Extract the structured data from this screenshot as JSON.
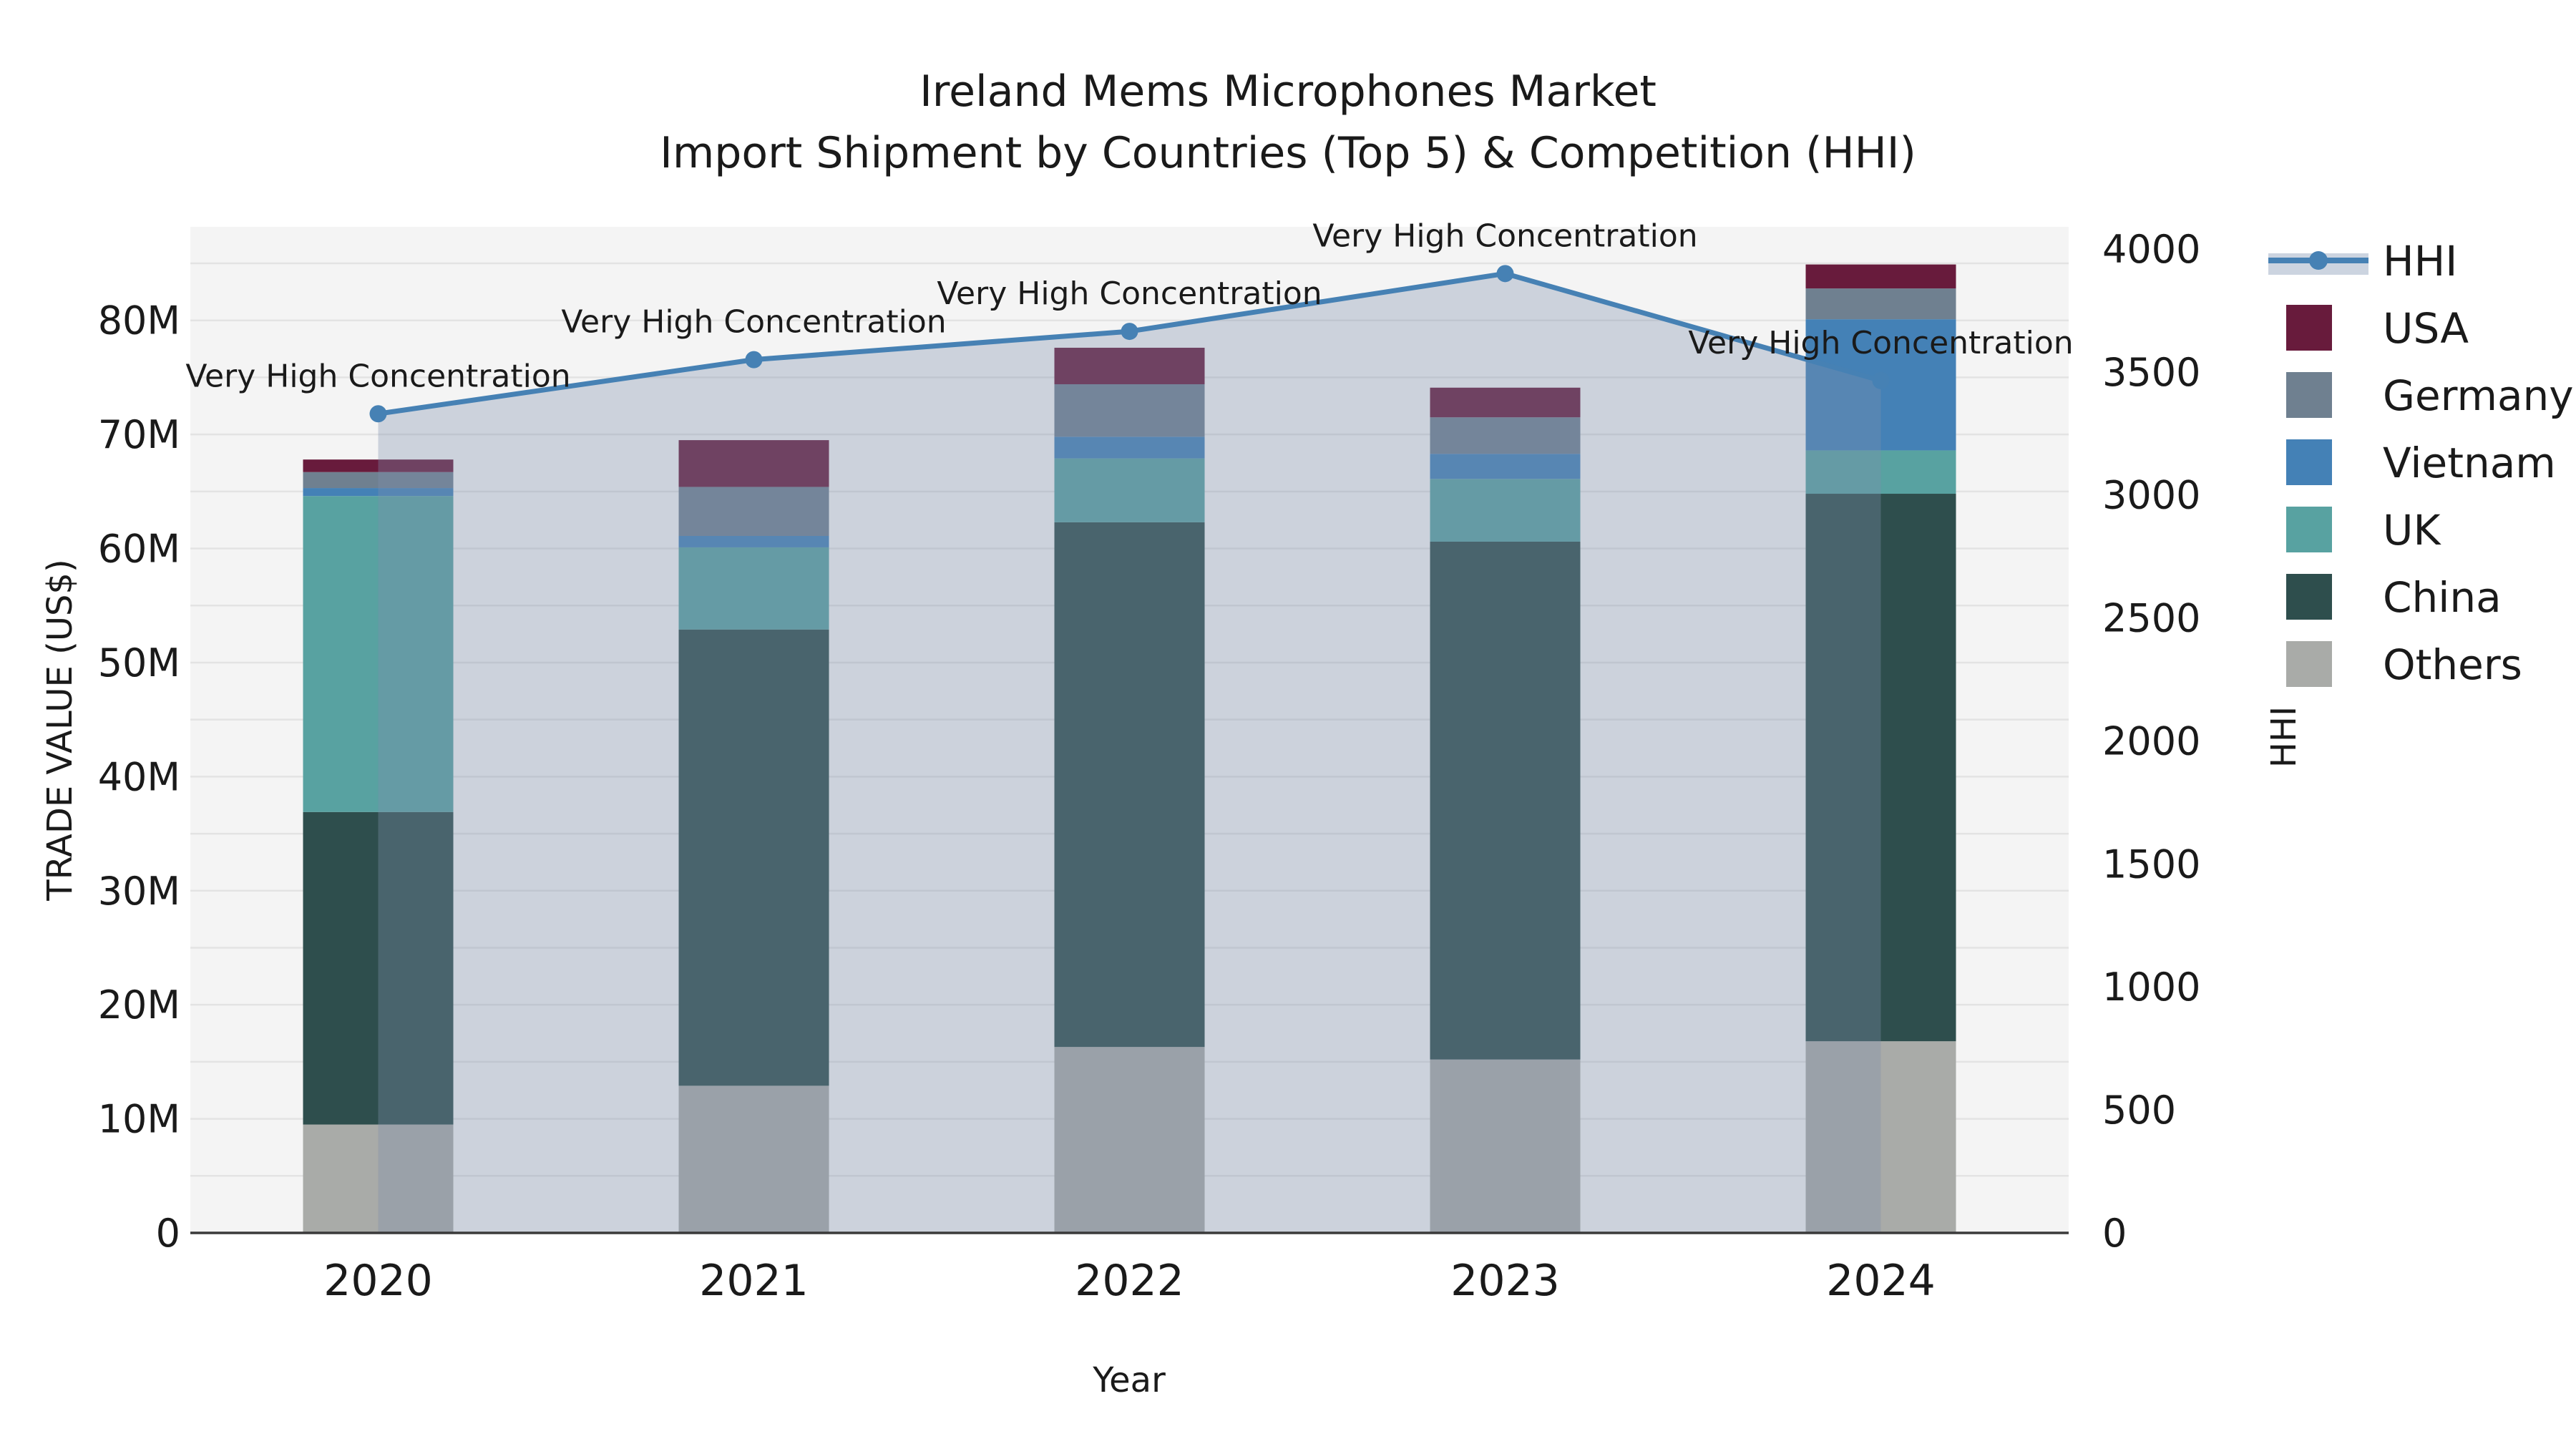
{
  "title": {
    "line1": "Ireland Mems Microphones Market",
    "line2": "Import Shipment by Countries (Top 5) & Competition (HHI)"
  },
  "chart_data": {
    "type": "combo-stacked-bar-line",
    "categories": [
      "2020",
      "2021",
      "2022",
      "2023",
      "2024"
    ],
    "series": [
      {
        "name": "Others",
        "color": "#A9ABA8",
        "values": [
          9.5,
          12.9,
          16.3,
          15.2,
          16.8
        ]
      },
      {
        "name": "China",
        "color": "#2E4E4D",
        "values": [
          27.4,
          40.0,
          46.0,
          45.4,
          48.0
        ]
      },
      {
        "name": "UK",
        "color": "#58A2A1",
        "values": [
          27.7,
          7.2,
          5.6,
          5.5,
          3.8
        ]
      },
      {
        "name": "Vietnam",
        "color": "#4481B6",
        "values": [
          0.7,
          1.0,
          1.9,
          2.2,
          11.5
        ]
      },
      {
        "name": "Germany",
        "color": "#6F8090",
        "values": [
          1.4,
          4.3,
          4.6,
          3.2,
          2.7
        ]
      },
      {
        "name": "USA",
        "color": "#681B3C",
        "values": [
          1.1,
          4.1,
          3.2,
          2.6,
          2.1
        ]
      }
    ],
    "line_series": {
      "name": "HHI",
      "color": "#4681B4",
      "area_fill": "rgba(126,144,174,0.34)",
      "values": [
        3330,
        3550,
        3665,
        3900,
        3465
      ]
    },
    "annotations": {
      "text": "Very High Concentration",
      "per_point": [
        "Very High Concentration",
        "Very High Concentration",
        "Very High Concentration",
        "Very High Concentration",
        "Very High Concentration"
      ]
    },
    "xlabel": "Year",
    "ylabel_left": "TRADE VALUE (US$)",
    "ylabel_right": "HHI",
    "y_left": {
      "min": 0,
      "max": 88.2,
      "tick_values": [
        0,
        10,
        20,
        30,
        40,
        50,
        60,
        70,
        80
      ],
      "tick_labels": [
        "0",
        "10M",
        "20M",
        "30M",
        "40M",
        "50M",
        "60M",
        "70M",
        "80M"
      ],
      "grid_step": 5
    },
    "y_right": {
      "min": 0,
      "max": 4090,
      "tick_values": [
        0,
        500,
        1000,
        1500,
        2000,
        2500,
        3000,
        3500,
        4000
      ],
      "tick_labels": [
        "0",
        "500",
        "1000",
        "1500",
        "2000",
        "2500",
        "3000",
        "3500",
        "4000"
      ]
    },
    "legend_order": [
      "HHI",
      "USA",
      "Germany",
      "Vietnam",
      "UK",
      "China",
      "Others"
    ],
    "grid_on": true,
    "legend_position": "right-top-outside"
  },
  "colors": {
    "plot_bg": "#f4f4f4",
    "grid": "#e3e3e3",
    "axis_line": "#3a3a3a",
    "text": "#1a1a1a",
    "legend_hhi_band": "#ccd4e0"
  }
}
